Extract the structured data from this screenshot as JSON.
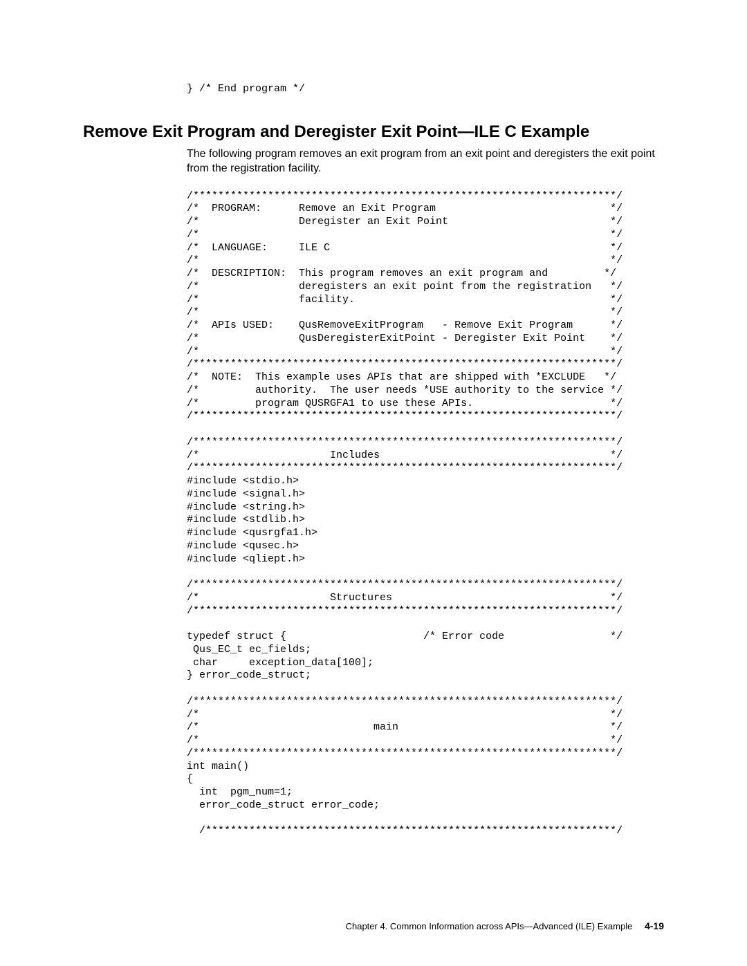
{
  "top_fragment": "} /* End program */",
  "heading": "Remove Exit Program and Deregister Exit Point—ILE C Example",
  "intro": "The following program removes an exit program from an exit point and deregisters the exit point from the registration facility.",
  "code": "/********************************************************************/\n/*  PROGRAM:      Remove an Exit Program                            */\n/*                Deregister an Exit Point                          */\n/*                                                                  */\n/*  LANGUAGE:     ILE C                                             */\n/*                                                                  */\n/*  DESCRIPTION:  This program removes an exit program and         */\n/*                deregisters an exit point from the registration   */\n/*                facility.                                         */\n/*                                                                  */\n/*  APIs USED:    QusRemoveExitProgram   - Remove Exit Program      */\n/*                QusDeregisterExitPoint - Deregister Exit Point    */\n/*                                                                  */\n/********************************************************************/\n/*  NOTE:  This example uses APIs that are shipped with *EXCLUDE   */\n/*         authority.  The user needs *USE authority to the service */\n/*         program QUSRGFA1 to use these APIs.                      */\n/********************************************************************/\n\n/********************************************************************/\n/*                     Includes                                     */\n/********************************************************************/\n#include <stdio.h>\n#include <signal.h>\n#include <string.h>\n#include <stdlib.h>\n#include <qusrgfa1.h>\n#include <qusec.h>\n#include <qliept.h>\n\n/********************************************************************/\n/*                     Structures                                   */\n/********************************************************************/\n\ntypedef struct {                      /* Error code                 */\n Qus_EC_t ec_fields;\n char     exception_data[100];\n} error_code_struct;\n\n/********************************************************************/\n/*                                                                  */\n/*                            main                                  */\n/*                                                                  */\n/********************************************************************/\nint main()\n{\n  int  pgm_num=1;\n  error_code_struct error_code;\n\n  /******************************************************************/",
  "footer_text": "Chapter 4. Common Information across APIs—Advanced (ILE) Example",
  "footer_page": "4-19"
}
